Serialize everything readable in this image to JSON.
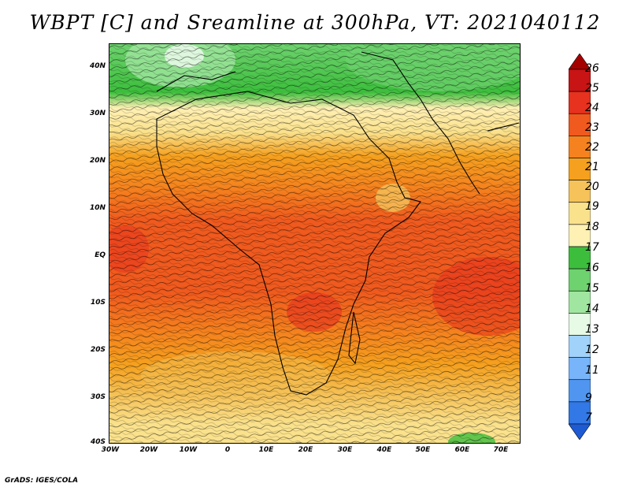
{
  "title": "WBPT [C] and Sreamline at 300hPa, VT: 2021040112",
  "credit": "GrADS: IGES/COLA",
  "map": {
    "y_ticks": [
      "40N",
      "30N",
      "20N",
      "10N",
      "EQ",
      "10S",
      "20S",
      "30S",
      "40S"
    ],
    "x_ticks": [
      "30W",
      "20W",
      "10W",
      "0",
      "10E",
      "20E",
      "30E",
      "40E",
      "50E",
      "60E",
      "70E"
    ],
    "extent": {
      "lon": [
        -30,
        75
      ],
      "lat": [
        -40,
        45
      ]
    }
  },
  "colorbar": {
    "labels": [
      "26",
      "25",
      "24",
      "23",
      "22",
      "21",
      "20",
      "19",
      "18",
      "17",
      "16",
      "15",
      "14",
      "13",
      "12",
      "11",
      "9",
      "7"
    ],
    "colors": [
      "#a50000",
      "#c81414",
      "#e6321e",
      "#f05a1e",
      "#f5821e",
      "#f5a01e",
      "#f5c35a",
      "#fae18c",
      "#fff0b4",
      "#3cbe3c",
      "#6ed26e",
      "#a0e6a0",
      "#e6fae6",
      "#a0d2fa",
      "#78b4fa",
      "#5096f0",
      "#3278e6",
      "#1e5ad2"
    ]
  }
}
